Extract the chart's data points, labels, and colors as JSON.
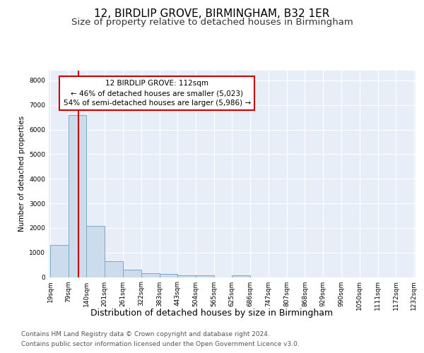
{
  "title1": "12, BIRDLIP GROVE, BIRMINGHAM, B32 1ER",
  "title2": "Size of property relative to detached houses in Birmingham",
  "xlabel": "Distribution of detached houses by size in Birmingham",
  "ylabel": "Number of detached properties",
  "footer1": "Contains HM Land Registry data © Crown copyright and database right 2024.",
  "footer2": "Contains public sector information licensed under the Open Government Licence v3.0.",
  "bar_color": "#ccdcec",
  "bar_edge_color": "#7aaac8",
  "red_line_color": "#cc0000",
  "annotation_line1": "12 BIRDLIP GROVE: 112sqm",
  "annotation_line2": "← 46% of detached houses are smaller (5,023)",
  "annotation_line3": "54% of semi-detached houses are larger (5,986) →",
  "annotation_box_color": "#ffffff",
  "annotation_border_color": "#cc0000",
  "property_size": 112,
  "bin_edges": [
    19,
    79,
    140,
    201,
    261,
    322,
    383,
    443,
    504,
    565,
    625,
    686,
    747,
    807,
    868,
    929,
    990,
    1050,
    1111,
    1172,
    1232
  ],
  "bin_counts": [
    1300,
    6600,
    2080,
    650,
    300,
    150,
    120,
    80,
    80,
    0,
    80,
    0,
    0,
    0,
    0,
    0,
    0,
    0,
    0,
    0
  ],
  "ylim": [
    0,
    8400
  ],
  "yticks": [
    0,
    1000,
    2000,
    3000,
    4000,
    5000,
    6000,
    7000,
    8000
  ],
  "figure_bg": "#ffffff",
  "axes_bg": "#e8eef8",
  "grid_color": "#ffffff",
  "title1_fontsize": 11,
  "title2_fontsize": 9.5,
  "xlabel_fontsize": 9,
  "ylabel_fontsize": 7.5,
  "tick_fontsize": 6.5,
  "footer_fontsize": 6.5
}
